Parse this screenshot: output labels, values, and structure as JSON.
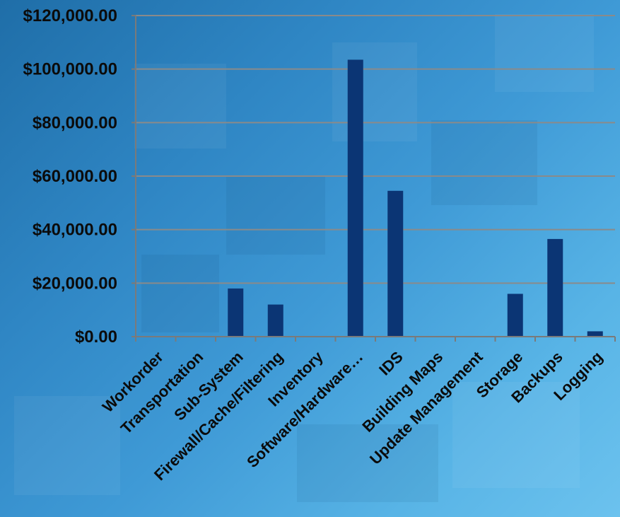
{
  "chart_data": {
    "type": "bar",
    "title": "",
    "xlabel": "",
    "ylabel": "",
    "categories": [
      "Workorder",
      "Transportation",
      "Sub-System",
      "Firewall/Cache/Filtering",
      "Inventory",
      "Software/Hardware…",
      "IDS",
      "Building Maps",
      "Update Management",
      "Storage",
      "Backups",
      "Logging"
    ],
    "values": [
      0,
      0,
      18000,
      12000,
      0,
      103500,
      54500,
      0,
      0,
      16000,
      36500,
      2000
    ],
    "ylim": [
      0,
      120000
    ],
    "yticks": [
      0,
      20000,
      40000,
      60000,
      80000,
      100000,
      120000
    ],
    "ytick_labels": [
      "$0.00",
      "$20,000.00",
      "$40,000.00",
      "$60,000.00",
      "$80,000.00",
      "$100,000.00",
      "$120,000.00"
    ],
    "grid": true,
    "legend": "none",
    "colors": {
      "bar": "#0b3574",
      "grid": "#8a8a8a",
      "axis": "#7a7a7a",
      "text": "#0b0b0b"
    }
  }
}
